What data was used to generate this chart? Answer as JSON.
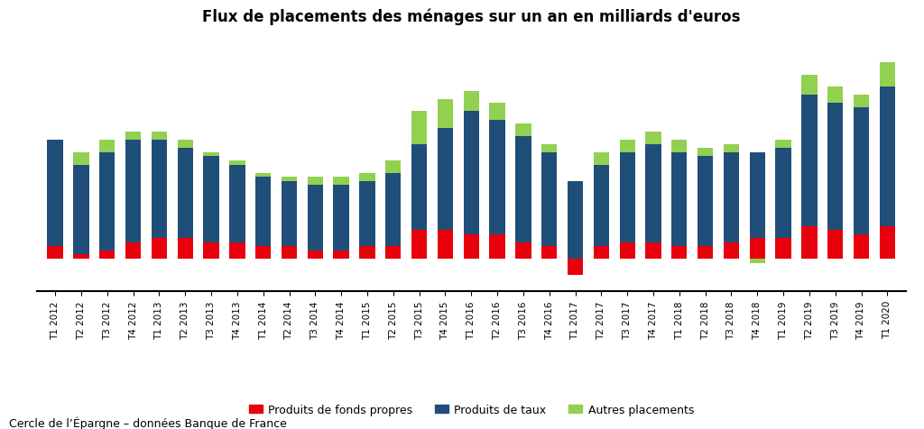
{
  "title": "Flux de placements des ménages sur un an en milliards d'euros",
  "source": "Cercle de l’Épargne – données Banque de France",
  "categories": [
    "T1 2012",
    "T2 2012",
    "T3 2012",
    "T4 2012",
    "T1 2013",
    "T2 2013",
    "T3 2013",
    "T4 2013",
    "T1 2014",
    "T2 2014",
    "T3 2014",
    "T4 2014",
    "T1 2015",
    "T2 2015",
    "T3 2015",
    "T4 2015",
    "T1 2016",
    "T2 2016",
    "T3 2016",
    "T4 2016",
    "T1 2017",
    "T2 2017",
    "T3 2017",
    "T4 2017",
    "T1 2018",
    "T2 2018",
    "T3 2018",
    "T4 2018",
    "T1 2019",
    "T2 2019",
    "T3 2019",
    "T4 2019",
    "T1 2020"
  ],
  "fonds_propres": [
    3,
    1,
    2,
    4,
    5,
    5,
    4,
    4,
    3,
    3,
    2,
    2,
    3,
    3,
    7,
    7,
    6,
    6,
    4,
    3,
    -4,
    3,
    4,
    4,
    3,
    3,
    4,
    5,
    5,
    8,
    7,
    6,
    8
  ],
  "taux": [
    26,
    22,
    24,
    25,
    24,
    22,
    21,
    19,
    17,
    16,
    16,
    16,
    16,
    18,
    21,
    25,
    30,
    28,
    26,
    23,
    19,
    20,
    22,
    24,
    23,
    22,
    22,
    21,
    22,
    32,
    31,
    31,
    34
  ],
  "autres": [
    0,
    3,
    3,
    2,
    2,
    2,
    1,
    1,
    1,
    1,
    2,
    2,
    2,
    3,
    8,
    7,
    5,
    4,
    3,
    2,
    0,
    3,
    3,
    3,
    3,
    2,
    2,
    -1,
    2,
    5,
    4,
    3,
    6
  ],
  "color_fonds": "#e8000d",
  "color_taux": "#1f4e79",
  "color_autres": "#92d050",
  "background_color": "#ffffff",
  "legend_fonds": "Produits de fonds propres",
  "legend_taux": "Produits de taux",
  "legend_autres": "Autres placements",
  "ylim": [
    -8,
    55
  ]
}
